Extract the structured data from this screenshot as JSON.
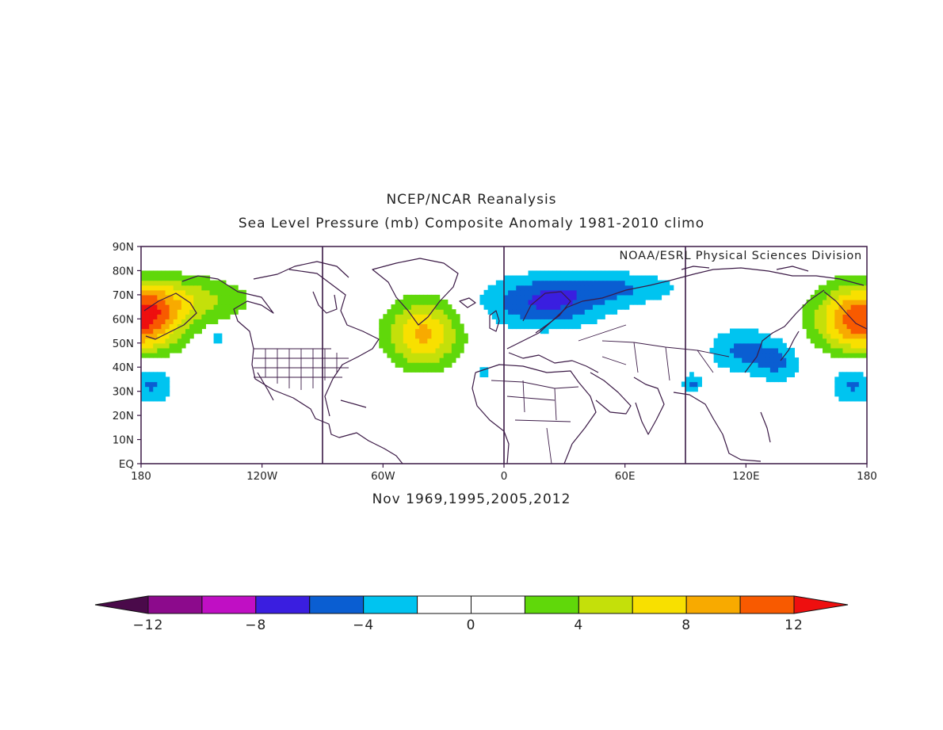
{
  "header": {
    "title": "NCEP/NCAR Reanalysis",
    "subtitle": "Sea Level Pressure (mb) Composite Anomaly 1981-2010 climo"
  },
  "credit": "NOAA/ESRL Physical Sciences Division",
  "caption": "Nov 1969,1995,2005,2012",
  "map": {
    "lon_range": [
      -180,
      180
    ],
    "lat_range": [
      0,
      90
    ],
    "lon_ticks": [
      {
        "value": -180,
        "label": "180"
      },
      {
        "value": -120,
        "label": "120W"
      },
      {
        "value": -60,
        "label": "60W"
      },
      {
        "value": 0,
        "label": "0"
      },
      {
        "value": 60,
        "label": "60E"
      },
      {
        "value": 120,
        "label": "120E"
      },
      {
        "value": 180,
        "label": "180"
      }
    ],
    "lat_ticks": [
      {
        "value": 0,
        "label": "EQ"
      },
      {
        "value": 10,
        "label": "10N"
      },
      {
        "value": 20,
        "label": "20N"
      },
      {
        "value": 30,
        "label": "30N"
      },
      {
        "value": 40,
        "label": "40N"
      },
      {
        "value": 50,
        "label": "50N"
      },
      {
        "value": 60,
        "label": "60N"
      },
      {
        "value": 70,
        "label": "70N"
      },
      {
        "value": 80,
        "label": "80N"
      },
      {
        "value": 90,
        "label": "90N"
      }
    ],
    "vertical_lines": [
      -90,
      0,
      90
    ],
    "anomaly_centers": [
      {
        "lon": -180,
        "lat": 60,
        "peak": 12,
        "sx": 14,
        "sy": 10
      },
      {
        "lon": 178,
        "lat": 60,
        "peak": 12,
        "sx": 16,
        "sy": 10
      },
      {
        "lon": -155,
        "lat": 68,
        "peak": 4.5,
        "sx": 22,
        "sy": 7
      },
      {
        "lon": -40,
        "lat": 54,
        "peak": 8.5,
        "sx": 13,
        "sy": 10
      },
      {
        "lon": 20,
        "lat": 67,
        "peak": -6.2,
        "sx": 22,
        "sy": 8
      },
      {
        "lon": 60,
        "lat": 73,
        "peak": -3.5,
        "sx": 22,
        "sy": 5
      },
      {
        "lon": -175,
        "lat": 33,
        "peak": -4.5,
        "sx": 8,
        "sy": 6
      },
      {
        "lon": 173,
        "lat": 33,
        "peak": -4.5,
        "sx": 8,
        "sy": 6
      },
      {
        "lon": 118,
        "lat": 47,
        "peak": -4.5,
        "sx": 12,
        "sy": 7
      },
      {
        "lon": 137,
        "lat": 42,
        "peak": -3.8,
        "sx": 8,
        "sy": 6
      },
      {
        "lon": 93,
        "lat": 33,
        "peak": -4.6,
        "sx": 3.5,
        "sy": 3
      },
      {
        "lon": -142,
        "lat": 52,
        "peak": -3.2,
        "sx": 2.5,
        "sy": 2.5
      },
      {
        "lon": -10,
        "lat": 38,
        "peak": -2.8,
        "sx": 2.5,
        "sy": 2.5
      },
      {
        "lon": -70,
        "lat": 63,
        "peak": -2.6,
        "sx": 2,
        "sy": 2
      }
    ]
  },
  "colorbar": {
    "levels": [
      -12,
      -10,
      -8,
      -6,
      -4,
      -2,
      0,
      2,
      4,
      6,
      8,
      10,
      12
    ],
    "colors": [
      "#4a0a4a",
      "#8c0a8c",
      "#c00fc4",
      "#3a1ee0",
      "#0a5ed2",
      "#00c4f0",
      "#ffffff",
      "#ffffff",
      "#60d80a",
      "#c4e00a",
      "#f8e000",
      "#f8aa00",
      "#f85a00",
      "#ee0f0f"
    ],
    "tick_labels": [
      {
        "value": -12,
        "label": "−12"
      },
      {
        "value": -8,
        "label": "−8"
      },
      {
        "value": -4,
        "label": "−4"
      },
      {
        "value": 0,
        "label": "0"
      },
      {
        "value": 4,
        "label": "4"
      },
      {
        "value": 8,
        "label": "8"
      },
      {
        "value": 12,
        "label": "12"
      }
    ]
  },
  "style": {
    "frame_color": "#3b1a46",
    "coast_color": "#3b1a46"
  }
}
